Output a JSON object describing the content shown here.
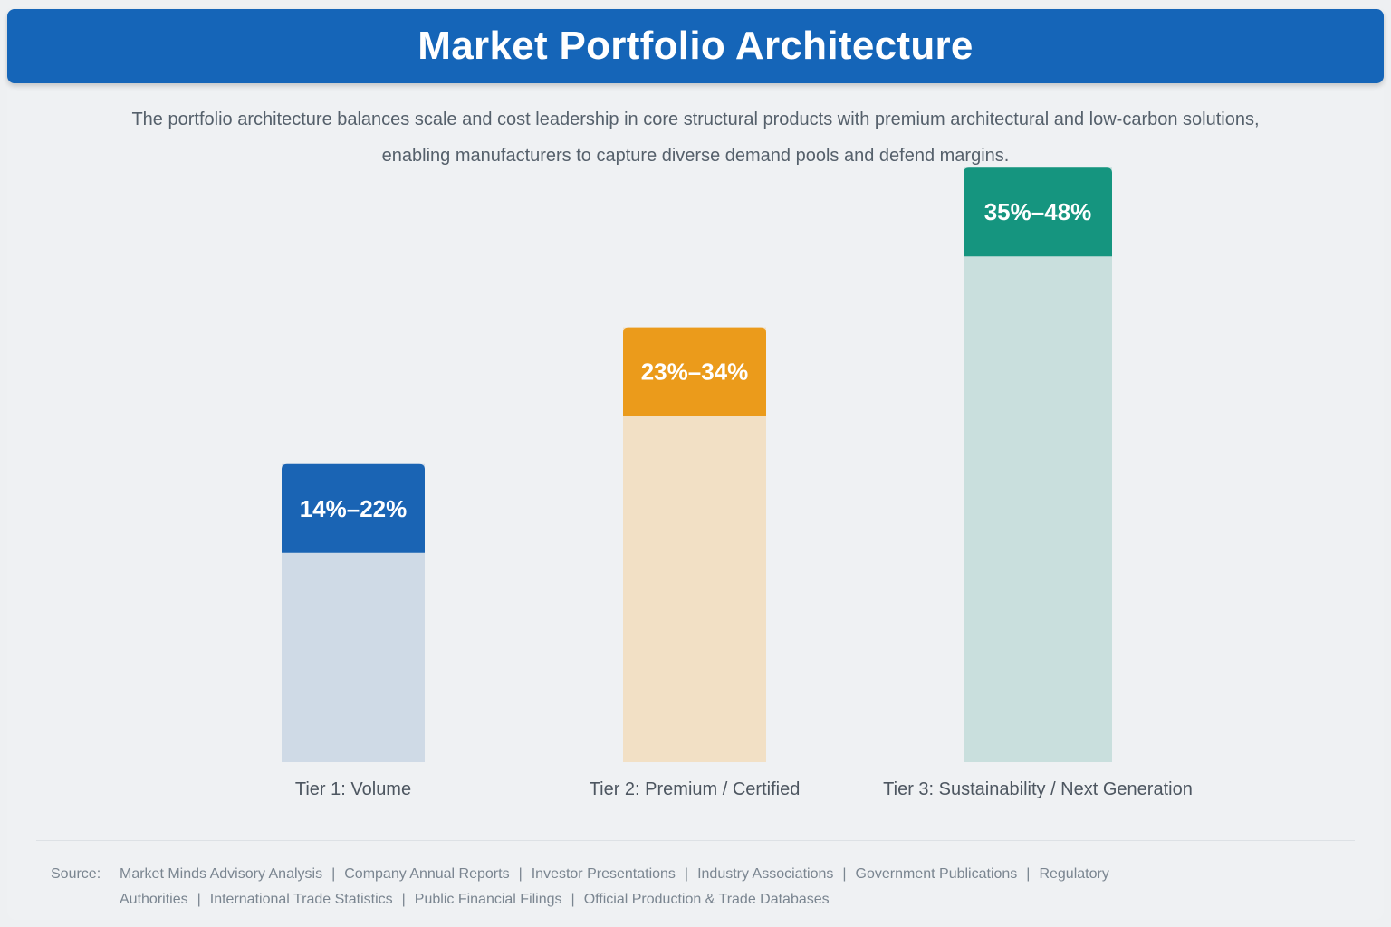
{
  "title": "Market Portfolio Architecture",
  "subtitle": "The portfolio architecture balances scale and cost leadership in core structural products with premium architectural and low-carbon solutions, enabling manufacturers to capture diverse demand pools and defend margins.",
  "chart_data": {
    "type": "bar",
    "title": "",
    "xlabel": "",
    "ylabel": "",
    "categories": [
      "Tier 1: Volume",
      "Tier 2: Premium / Certified",
      "Tier 3: Sustainability / Next Generation"
    ],
    "ranges": [
      [
        14,
        22
      ],
      [
        23,
        34
      ],
      [
        35,
        48
      ]
    ],
    "range_labels": [
      "14%–22%",
      "23%–34%",
      "35%–48%"
    ],
    "colors": {
      "header": [
        "#1a64b4",
        "#eb9b1b",
        "#15957f"
      ],
      "body": [
        "#cfdae6",
        "#f2e0c5",
        "#c9dfdd"
      ]
    },
    "grid": false,
    "legend": "none"
  },
  "source": {
    "label": "Source:",
    "items": [
      "Market Minds Advisory Analysis",
      "Company Annual Reports",
      "Investor Presentations",
      "Industry Associations",
      "Government Publications",
      "Regulatory Authorities",
      "International Trade Statistics",
      "Public Financial Filings",
      "Official Production & Trade Databases"
    ]
  }
}
